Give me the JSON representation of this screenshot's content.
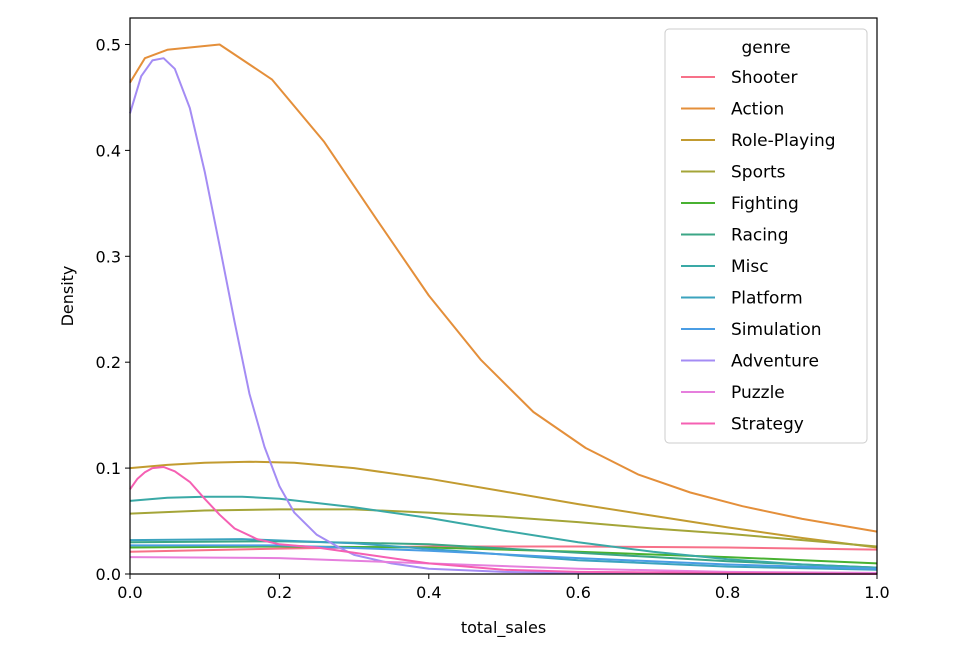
{
  "chart_data": {
    "type": "line",
    "title": "",
    "xlabel": "total_sales",
    "ylabel": "Density",
    "xlim": [
      0.0,
      1.0
    ],
    "ylim": [
      0.0,
      0.525
    ],
    "xticks": [
      "0.0",
      "0.2",
      "0.4",
      "0.6",
      "0.8",
      "1.0"
    ],
    "yticks": [
      "0.0",
      "0.1",
      "0.2",
      "0.3",
      "0.4",
      "0.5"
    ],
    "grid": false,
    "legend": {
      "title": "genre",
      "placement": "top-right"
    },
    "series": [
      {
        "name": "Shooter",
        "color": "#f77189",
        "x": [
          0,
          0.2,
          0.4,
          0.6,
          0.8,
          1.0
        ],
        "y": [
          0.021,
          0.024,
          0.026,
          0.026,
          0.025,
          0.023
        ]
      },
      {
        "name": "Action",
        "color": "#e48f3a",
        "x": [
          0,
          0.02,
          0.05,
          0.12,
          0.19,
          0.26,
          0.33,
          0.4,
          0.47,
          0.54,
          0.61,
          0.68,
          0.75,
          0.82,
          0.9,
          1.0
        ],
        "y": [
          0.464,
          0.487,
          0.495,
          0.5,
          0.467,
          0.408,
          0.335,
          0.263,
          0.202,
          0.153,
          0.119,
          0.094,
          0.077,
          0.064,
          0.052,
          0.04
        ]
      },
      {
        "name": "Role-Playing",
        "color": "#c29b30",
        "x": [
          0,
          0.05,
          0.1,
          0.16,
          0.22,
          0.3,
          0.4,
          0.5,
          0.6,
          0.7,
          0.8,
          0.9,
          1.0
        ],
        "y": [
          0.1,
          0.103,
          0.105,
          0.106,
          0.105,
          0.1,
          0.09,
          0.078,
          0.066,
          0.055,
          0.044,
          0.034,
          0.025
        ]
      },
      {
        "name": "Sports",
        "color": "#a4a538",
        "x": [
          0,
          0.1,
          0.2,
          0.3,
          0.4,
          0.5,
          0.6,
          0.7,
          0.8,
          0.9,
          1.0
        ],
        "y": [
          0.057,
          0.06,
          0.061,
          0.061,
          0.058,
          0.054,
          0.049,
          0.043,
          0.038,
          0.032,
          0.026
        ]
      },
      {
        "name": "Fighting",
        "color": "#48b131",
        "x": [
          0,
          0.2,
          0.4,
          0.6,
          0.8,
          1.0
        ],
        "y": [
          0.025,
          0.026,
          0.025,
          0.021,
          0.016,
          0.01
        ]
      },
      {
        "name": "Racing",
        "color": "#3ba686",
        "x": [
          0,
          0.2,
          0.4,
          0.6,
          0.8,
          1.0
        ],
        "y": [
          0.03,
          0.031,
          0.028,
          0.02,
          0.012,
          0.006
        ]
      },
      {
        "name": "Misc",
        "color": "#3aa9a6",
        "x": [
          0,
          0.05,
          0.1,
          0.15,
          0.2,
          0.3,
          0.4,
          0.5,
          0.6,
          0.7,
          0.8,
          0.9,
          1.0
        ],
        "y": [
          0.069,
          0.072,
          0.073,
          0.073,
          0.071,
          0.063,
          0.053,
          0.041,
          0.03,
          0.021,
          0.014,
          0.009,
          0.006
        ]
      },
      {
        "name": "Platform",
        "color": "#3ba3be",
        "x": [
          0,
          0.15,
          0.3,
          0.45,
          0.6,
          0.8,
          1.0
        ],
        "y": [
          0.032,
          0.033,
          0.029,
          0.021,
          0.013,
          0.007,
          0.004
        ]
      },
      {
        "name": "Simulation",
        "color": "#4a9de4",
        "x": [
          0,
          0.2,
          0.4,
          0.6,
          0.8,
          1.0
        ],
        "y": [
          0.027,
          0.027,
          0.022,
          0.015,
          0.009,
          0.005
        ]
      },
      {
        "name": "Adventure",
        "color": "#a48cf4",
        "x": [
          0,
          0.015,
          0.03,
          0.045,
          0.06,
          0.08,
          0.1,
          0.12,
          0.14,
          0.16,
          0.18,
          0.2,
          0.22,
          0.25,
          0.28,
          0.3,
          0.35,
          0.4,
          0.5,
          0.6,
          0.8,
          1.0
        ],
        "y": [
          0.435,
          0.47,
          0.485,
          0.487,
          0.477,
          0.44,
          0.38,
          0.31,
          0.238,
          0.17,
          0.12,
          0.083,
          0.058,
          0.037,
          0.025,
          0.018,
          0.01,
          0.005,
          0.002,
          0.001,
          0.0,
          0.0
        ]
      },
      {
        "name": "Puzzle",
        "color": "#e67fdd",
        "x": [
          0,
          0.2,
          0.4,
          0.6,
          0.8,
          1.0
        ],
        "y": [
          0.016,
          0.015,
          0.01,
          0.005,
          0.002,
          0.001
        ]
      },
      {
        "name": "Strategy",
        "color": "#f560b3",
        "x": [
          0,
          0.01,
          0.02,
          0.03,
          0.045,
          0.06,
          0.08,
          0.1,
          0.12,
          0.14,
          0.17,
          0.2,
          0.25,
          0.3,
          0.4,
          0.5,
          0.6,
          0.8,
          1.0
        ],
        "y": [
          0.08,
          0.09,
          0.096,
          0.1,
          0.101,
          0.097,
          0.087,
          0.071,
          0.056,
          0.043,
          0.033,
          0.028,
          0.025,
          0.02,
          0.01,
          0.004,
          0.002,
          0.001,
          0.0
        ]
      }
    ]
  }
}
